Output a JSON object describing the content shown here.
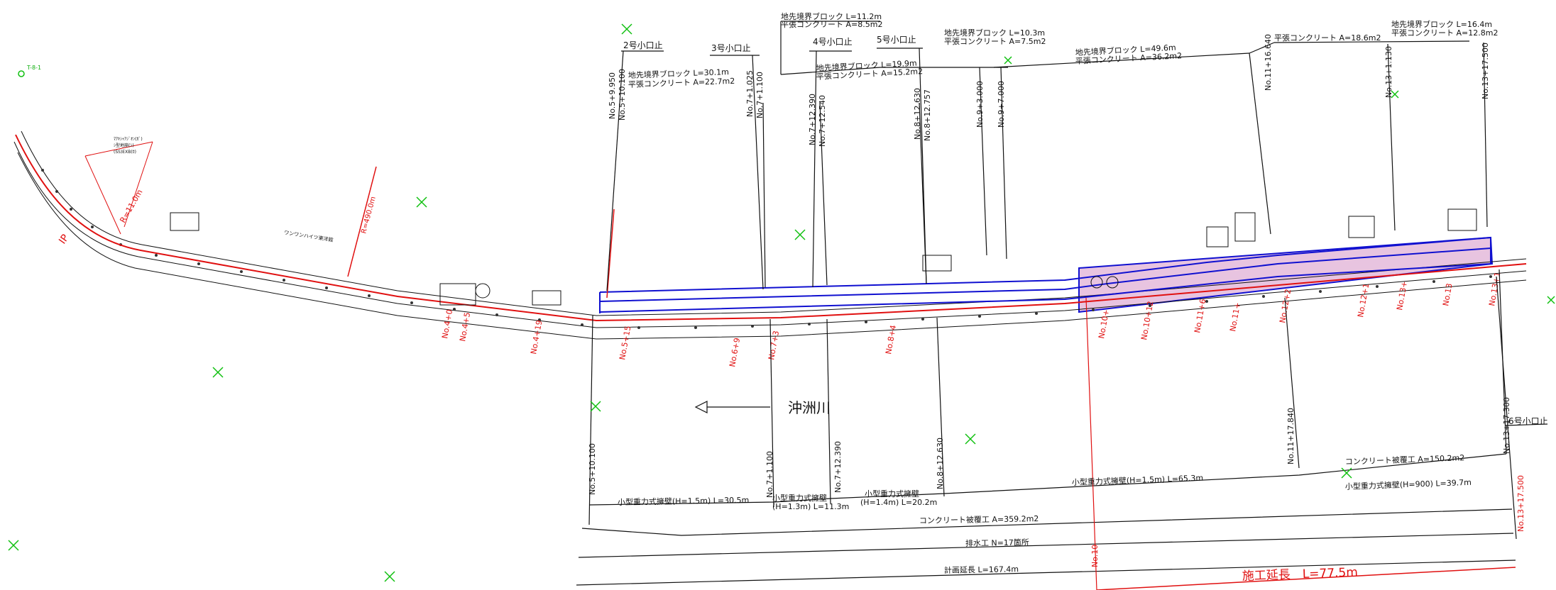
{
  "colors": {
    "ink": "#111111",
    "station_red": "#e01010",
    "alignment_blue": "#1010d0",
    "marker_green": "#10c010",
    "work_zone_fill": "#e8c4e0"
  },
  "river_label": "沖洲川",
  "top_callouts": {
    "weir_2": "2号小口止",
    "weir_3": "3号小口止",
    "weir_4": "4号小口止",
    "weir_5": "5号小口止",
    "weir_6": "6号小口止",
    "block_a_1": "地先境界ブロック L=30.1m",
    "block_a_2": "平張コンクリート A=22.7m2",
    "block_b_1": "地先境界ブロック L=11.2m",
    "block_b_2": "平張コンクリート A=8.5m2",
    "block_c_1": "地先境界ブロック L=19.9m",
    "block_c_2": "平張コンクリート A=15.2m2",
    "block_d_1": "地先境界ブロック L=10.3m",
    "block_d_2": "平張コンクリート A=7.5m2",
    "block_e_1": "地先境界ブロック L=49.6m",
    "block_e_2": "平張コンクリート A=36.2m2",
    "block_f_1": "平張コンクリート A=18.6m2",
    "block_g_1": "地先境界ブロック L=16.4m",
    "block_g_2": "平張コンクリート A=12.8m2"
  },
  "top_stations": [
    "No.5+9.950",
    "No.5+10.100",
    "No.7+1.025",
    "No.7+1.100",
    "No.7+12.390",
    "No.7+12.540",
    "No.8+12.630",
    "No.8+12.757",
    "No.9+3.000",
    "No.9+7.000",
    "No.11+16.640",
    "No.13+1.130",
    "No.13+17.500"
  ],
  "bottom_stations": [
    "No.5+10.100",
    "No.7+1.100",
    "No.7+12.390",
    "No.8+12.630",
    "No.11+17.840",
    "No.13+17.300",
    "No.13+17.500",
    "No.10"
  ],
  "dims": {
    "retaining_1": "小型重力式擁壁(H=1.5m) L=30.5m",
    "retaining_2a": "小型重力式擁壁",
    "retaining_2b": "(H=1.3m) L=11.3m",
    "retaining_3a": "小型重力式擁壁",
    "retaining_3b": "(H=1.4m) L=20.2m",
    "retaining_4": "小型重力式擁壁(H=1.5m) L=65.3m",
    "retaining_5": "小型重力式擁壁(H=900) L=39.7m",
    "concrete_cover_right": "コンクリート被覆工 A=150.2m2",
    "concrete_cover_total": "コンクリート被覆工 A=359.2m2",
    "drainage": "排水工 N=17箇所",
    "planned_length": "計画延長 L=167.4m",
    "construction_length": "施工延長　L=77.5m"
  },
  "red_stations": [
    "No.4+0",
    "No.4+5",
    "No.4+19",
    "No.5+15",
    "No.6+9",
    "No.7+3",
    "No.8+4",
    "No.10+",
    "No.10+12",
    "No.11+6",
    "No.11+",
    "No.12+2",
    "No.12+1",
    "No.13+",
    "No.13",
    "No.13+1"
  ],
  "misc": {
    "ip_label": "IP",
    "r_label": "R=11.0m",
    "road_label": "ワンワンハイツ東洋館",
    "curve_label": "R=490.0m",
    "box_label_1": "ﾏｱｷｼｬｱｼﾞｵﾝ(ｶﾞ)",
    "box_label_2": "ｼ型地崩(ｼ)",
    "box_label_3": "(SS)EXB(ｶ)",
    "green_tag": "T-8-1",
    "mark": "ılı"
  }
}
